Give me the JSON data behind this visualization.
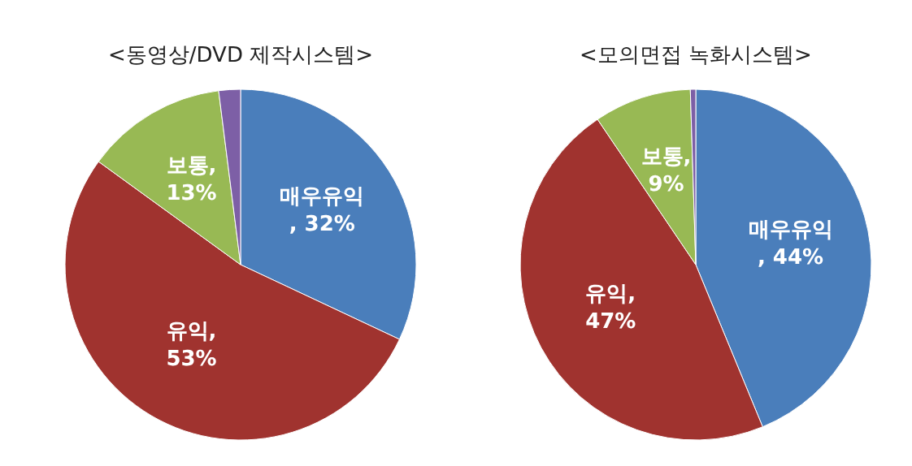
{
  "chart_data": [
    {
      "type": "pie",
      "title": "<동영상/DVD  제작시스템>",
      "categories": [
        "매우유익",
        "유익",
        "보통",
        null
      ],
      "values": [
        32,
        53,
        13,
        2
      ],
      "value_labels": [
        "\n, 32%",
        ",\n53%",
        ",\n13%",
        null
      ],
      "colors": [
        "#4a7ebb",
        "#a0332f",
        "#98b954",
        "#7d5fa6"
      ]
    },
    {
      "type": "pie",
      "title": "<모의면접  녹화시스템>",
      "categories": [
        "매우유익",
        "유익",
        "보통",
        null
      ],
      "values": [
        44,
        47,
        9,
        0.5
      ],
      "value_labels": [
        "\n, 44%",
        ",\n47%",
        ",\n9%",
        null
      ],
      "colors": [
        "#4a7ebb",
        "#a0332f",
        "#98b954",
        "#7d5fa6"
      ]
    }
  ]
}
